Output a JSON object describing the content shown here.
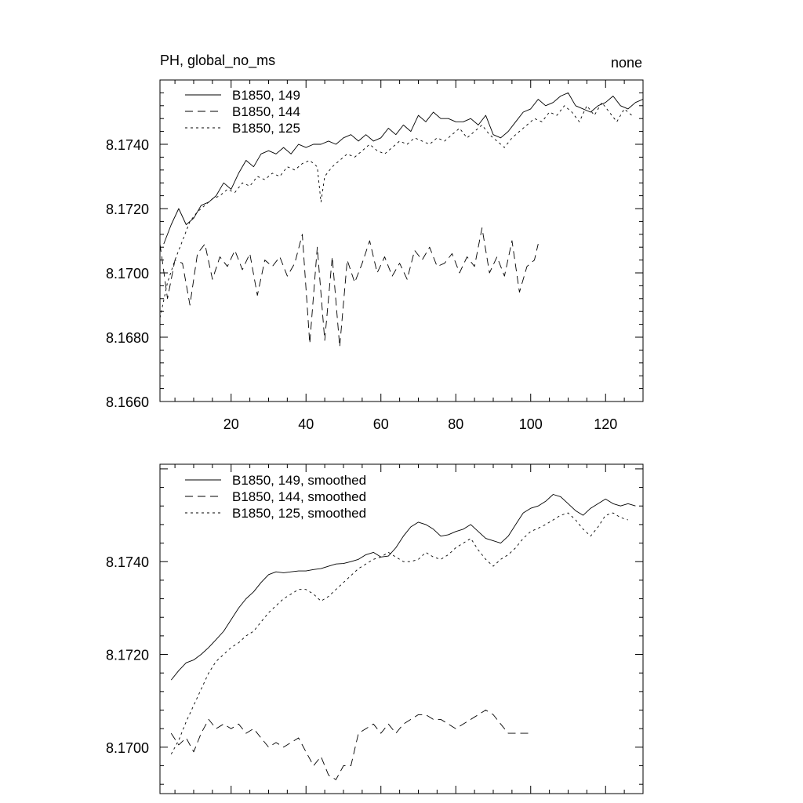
{
  "chart_data": [
    {
      "type": "line",
      "title_left": "PH, global_no_ms",
      "title_right": "none",
      "xlabel": "",
      "ylabel": "",
      "xlim": [
        1,
        130
      ],
      "ylim": [
        8.166,
        8.176
      ],
      "x_ticks": [
        20,
        40,
        60,
        80,
        100,
        120
      ],
      "x_tick_labels": [
        "20",
        "40",
        "60",
        "80",
        "100",
        "120"
      ],
      "y_ticks": [
        8.166,
        8.168,
        8.17,
        8.172,
        8.174
      ],
      "y_tick_labels": [
        "8.1660",
        "8.1680",
        "8.1700",
        "8.1720",
        "8.1740"
      ],
      "legend_position": "top-left",
      "series": [
        {
          "name": "B1850, 149",
          "dash": "solid",
          "x": [
            2,
            4,
            6,
            8,
            10,
            12,
            14,
            16,
            18,
            20,
            22,
            24,
            26,
            28,
            30,
            32,
            34,
            36,
            38,
            40,
            42,
            44,
            46,
            48,
            50,
            52,
            54,
            56,
            58,
            60,
            62,
            64,
            66,
            68,
            70,
            72,
            74,
            76,
            78,
            80,
            82,
            84,
            86,
            88,
            90,
            92,
            94,
            96,
            98,
            100,
            102,
            104,
            106,
            108,
            110,
            112,
            114,
            116,
            118,
            120,
            122,
            124,
            126,
            128,
            130
          ],
          "y": [
            8.1709,
            8.1715,
            8.172,
            8.1715,
            8.1717,
            8.1721,
            8.1722,
            8.1724,
            8.1728,
            8.1726,
            8.1731,
            8.1735,
            8.1733,
            8.1737,
            8.1738,
            8.1737,
            8.1739,
            8.1737,
            8.174,
            8.1739,
            8.174,
            8.174,
            8.1741,
            8.174,
            8.1742,
            8.1743,
            8.1741,
            8.1743,
            8.1741,
            8.1742,
            8.1745,
            8.1743,
            8.1746,
            8.1744,
            8.1749,
            8.1747,
            8.175,
            8.1748,
            8.1748,
            8.1747,
            8.1747,
            8.1748,
            8.1746,
            8.1749,
            8.1743,
            8.1742,
            8.1744,
            8.1747,
            8.175,
            8.1751,
            8.1754,
            8.1752,
            8.1753,
            8.1755,
            8.1756,
            8.1752,
            8.1751,
            8.175,
            8.1752,
            8.1753,
            8.1755,
            8.1752,
            8.1751,
            8.1753,
            8.1754
          ]
        },
        {
          "name": "B1850, 144",
          "dash": "long-dash",
          "x": [
            1,
            3,
            5,
            7,
            9,
            11,
            13,
            15,
            17,
            19,
            21,
            23,
            25,
            27,
            29,
            31,
            33,
            35,
            37,
            39,
            41,
            43,
            45,
            47,
            49,
            51,
            53,
            55,
            57,
            59,
            61,
            63,
            65,
            67,
            69,
            71,
            73,
            75,
            77,
            79,
            81,
            83,
            85,
            87,
            89,
            91,
            93,
            95,
            97,
            99,
            101,
            102
          ],
          "y": [
            8.1709,
            8.1692,
            8.1704,
            8.1703,
            8.169,
            8.1706,
            8.1709,
            8.1698,
            8.1705,
            8.1702,
            8.1707,
            8.1701,
            8.1706,
            8.1693,
            8.1704,
            8.1702,
            8.1705,
            8.1699,
            8.1703,
            8.1712,
            8.1678,
            8.1708,
            8.1679,
            8.1705,
            8.1677,
            8.1704,
            8.1697,
            8.1703,
            8.171,
            8.17,
            8.1705,
            8.1699,
            8.1703,
            8.1698,
            8.1707,
            8.1704,
            8.1708,
            8.1702,
            8.1703,
            8.1706,
            8.17,
            8.1705,
            8.1702,
            8.1714,
            8.17,
            8.1705,
            8.1699,
            8.171,
            8.1694,
            8.1702,
            8.1704,
            8.1709
          ]
        },
        {
          "name": "B1850, 125",
          "dash": "short-dash",
          "x": [
            1,
            3,
            5,
            7,
            9,
            11,
            13,
            15,
            17,
            19,
            21,
            23,
            25,
            27,
            29,
            31,
            33,
            35,
            37,
            39,
            41,
            43,
            44,
            45,
            47,
            49,
            51,
            53,
            55,
            57,
            59,
            61,
            63,
            65,
            67,
            69,
            71,
            73,
            75,
            77,
            79,
            81,
            83,
            85,
            87,
            89,
            91,
            93,
            95,
            97,
            99,
            101,
            103,
            105,
            107,
            109,
            111,
            113,
            115,
            117,
            119,
            121,
            123,
            125,
            127
          ],
          "y": [
            8.1686,
            8.1697,
            8.1704,
            8.171,
            8.1716,
            8.1719,
            8.1721,
            8.1723,
            8.1724,
            8.1726,
            8.1725,
            8.1728,
            8.1727,
            8.173,
            8.1729,
            8.1731,
            8.173,
            8.1733,
            8.1732,
            8.1734,
            8.1735,
            8.1733,
            8.1722,
            8.173,
            8.1733,
            8.1735,
            8.1737,
            8.1736,
            8.1738,
            8.174,
            8.1738,
            8.1737,
            8.1739,
            8.1741,
            8.174,
            8.1742,
            8.1741,
            8.174,
            8.1742,
            8.1741,
            8.1743,
            8.1745,
            8.1742,
            8.1744,
            8.1746,
            8.1743,
            8.1741,
            8.1739,
            8.1742,
            8.1744,
            8.1746,
            8.1748,
            8.1747,
            8.175,
            8.1749,
            8.1752,
            8.175,
            8.1747,
            8.1752,
            8.1749,
            8.1753,
            8.175,
            8.1747,
            8.1751,
            8.1749
          ]
        }
      ]
    },
    {
      "type": "line",
      "xlabel": "",
      "ylabel": "",
      "xlim": [
        1,
        130
      ],
      "ylim": [
        8.169,
        8.1761
      ],
      "x_ticks": [
        20,
        40,
        60,
        80,
        100,
        120
      ],
      "x_tick_labels": [],
      "y_ticks": [
        8.17,
        8.172,
        8.174
      ],
      "y_tick_labels": [
        "8.1700",
        "8.1720",
        "8.1740"
      ],
      "legend_position": "top-left",
      "series": [
        {
          "name": "B1850, 149, smoothed",
          "dash": "solid",
          "x": [
            4,
            6,
            8,
            10,
            12,
            14,
            16,
            18,
            20,
            22,
            24,
            26,
            28,
            30,
            32,
            34,
            36,
            38,
            40,
            42,
            44,
            46,
            48,
            50,
            52,
            54,
            56,
            58,
            60,
            62,
            64,
            66,
            68,
            70,
            72,
            74,
            76,
            78,
            80,
            82,
            84,
            86,
            88,
            90,
            92,
            94,
            96,
            98,
            100,
            102,
            104,
            106,
            108,
            110,
            112,
            114,
            116,
            118,
            120,
            122,
            124,
            126,
            128
          ],
          "y": [
            8.17145,
            8.17165,
            8.17182,
            8.17188,
            8.172,
            8.17215,
            8.17232,
            8.1725,
            8.17275,
            8.173,
            8.1732,
            8.17335,
            8.17355,
            8.17372,
            8.17378,
            8.17376,
            8.17378,
            8.1738,
            8.1738,
            8.17383,
            8.17385,
            8.1739,
            8.17395,
            8.17396,
            8.174,
            8.17405,
            8.17415,
            8.1742,
            8.1741,
            8.17412,
            8.1743,
            8.17455,
            8.17475,
            8.17485,
            8.1748,
            8.1747,
            8.17455,
            8.17458,
            8.17465,
            8.1747,
            8.1748,
            8.17465,
            8.1745,
            8.17445,
            8.1744,
            8.17455,
            8.1748,
            8.17505,
            8.17515,
            8.1752,
            8.1753,
            8.17545,
            8.1754,
            8.17525,
            8.1751,
            8.175,
            8.17515,
            8.17525,
            8.17535,
            8.17525,
            8.1752,
            8.17525,
            8.1752
          ]
        },
        {
          "name": "B1850, 144, smoothed",
          "dash": "long-dash",
          "x": [
            4,
            6,
            8,
            10,
            12,
            14,
            16,
            18,
            20,
            22,
            24,
            26,
            28,
            30,
            32,
            34,
            36,
            38,
            40,
            42,
            44,
            46,
            48,
            50,
            52,
            54,
            56,
            58,
            60,
            62,
            64,
            66,
            68,
            70,
            72,
            74,
            76,
            78,
            80,
            82,
            84,
            86,
            88,
            90,
            92,
            94,
            96,
            98,
            100
          ],
          "y": [
            8.1703,
            8.17005,
            8.1702,
            8.1699,
            8.1703,
            8.1706,
            8.1704,
            8.1705,
            8.1704,
            8.1705,
            8.1703,
            8.1704,
            8.1702,
            8.17,
            8.1701,
            8.17,
            8.1701,
            8.1702,
            8.1699,
            8.1696,
            8.1698,
            8.1694,
            8.1693,
            8.1696,
            8.1696,
            8.1703,
            8.1704,
            8.1705,
            8.1703,
            8.1705,
            8.1703,
            8.1705,
            8.1706,
            8.1707,
            8.1707,
            8.1706,
            8.1706,
            8.1705,
            8.1704,
            8.1705,
            8.1706,
            8.1707,
            8.1708,
            8.1707,
            8.1705,
            8.1703,
            8.1703,
            8.1703,
            8.1703
          ]
        },
        {
          "name": "B1850, 125, smoothed",
          "dash": "short-dash",
          "x": [
            4,
            6,
            8,
            10,
            12,
            14,
            16,
            18,
            20,
            22,
            24,
            26,
            28,
            30,
            32,
            34,
            36,
            38,
            40,
            42,
            44,
            46,
            48,
            50,
            52,
            54,
            56,
            58,
            60,
            62,
            64,
            66,
            68,
            70,
            72,
            74,
            76,
            78,
            80,
            82,
            84,
            86,
            88,
            90,
            92,
            94,
            96,
            98,
            100,
            102,
            104,
            106,
            108,
            110,
            112,
            114,
            116,
            118,
            120,
            122,
            124,
            126
          ],
          "y": [
            8.16985,
            8.17015,
            8.17055,
            8.1709,
            8.17125,
            8.1716,
            8.17185,
            8.172,
            8.17215,
            8.17225,
            8.1724,
            8.1725,
            8.1727,
            8.1729,
            8.17305,
            8.1732,
            8.1733,
            8.1734,
            8.1734,
            8.1733,
            8.17315,
            8.17325,
            8.1734,
            8.17355,
            8.1737,
            8.17385,
            8.17395,
            8.17405,
            8.1741,
            8.1742,
            8.1741,
            8.174,
            8.174,
            8.17405,
            8.1742,
            8.1741,
            8.17405,
            8.17415,
            8.1743,
            8.1744,
            8.1745,
            8.17425,
            8.17405,
            8.1739,
            8.17405,
            8.17415,
            8.1743,
            8.1745,
            8.17465,
            8.17472,
            8.1748,
            8.1749,
            8.175,
            8.17505,
            8.1749,
            8.1747,
            8.17455,
            8.17475,
            8.175,
            8.17505,
            8.17495,
            8.1749
          ]
        }
      ]
    }
  ]
}
